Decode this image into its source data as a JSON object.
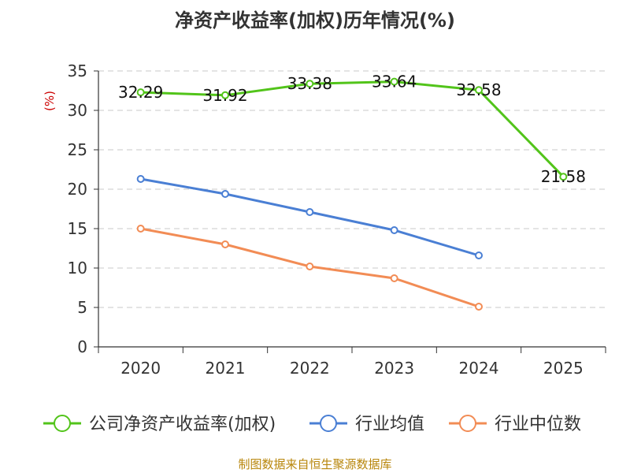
{
  "chart_data": {
    "type": "line",
    "title": "净资产收益率(加权)历年情况(%)",
    "ylabel": "(%)",
    "xlabel": "",
    "categories": [
      "2020",
      "2021",
      "2022",
      "2023",
      "2024",
      "2025"
    ],
    "ylim": [
      0,
      35
    ],
    "yticks": [
      0,
      5,
      10,
      15,
      20,
      25,
      30,
      35
    ],
    "grid": true,
    "legend_position": "bottom",
    "series": [
      {
        "name": "公司净资产收益率(加权)",
        "color": "#52c41a",
        "values": [
          32.29,
          31.92,
          33.38,
          33.64,
          32.58,
          21.58
        ],
        "labels": [
          "32.29",
          "31.92",
          "33.38",
          "33.64",
          "32.58",
          "21.58"
        ]
      },
      {
        "name": "行业均值",
        "color": "#4a7fd4",
        "values": [
          21.3,
          19.4,
          17.1,
          14.8,
          11.6,
          null
        ]
      },
      {
        "name": "行业中位数",
        "color": "#f28c55",
        "values": [
          15.0,
          13.0,
          10.2,
          8.7,
          5.1,
          null
        ]
      }
    ]
  },
  "source_note": "制图数据来自恒生聚源数据库"
}
